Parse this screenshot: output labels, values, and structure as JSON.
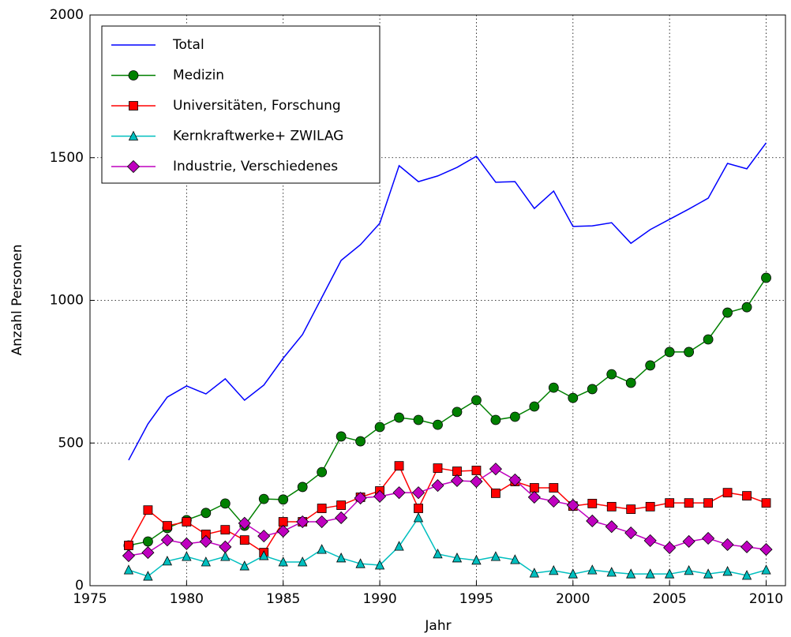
{
  "chart_data": {
    "type": "line",
    "xlabel": "Jahr",
    "ylabel": "Anzahl Personen",
    "x": [
      1977,
      1978,
      1979,
      1980,
      1981,
      1982,
      1983,
      1984,
      1985,
      1986,
      1987,
      1988,
      1989,
      1990,
      1991,
      1992,
      1993,
      1994,
      1995,
      1996,
      1997,
      1998,
      1999,
      2000,
      2001,
      2002,
      2003,
      2004,
      2005,
      2006,
      2007,
      2008,
      2009,
      2010
    ],
    "series": [
      {
        "name": "Total",
        "color": "#0000ff",
        "marker": "none",
        "values": [
          440,
          567,
          661,
          700,
          672,
          725,
          650,
          703,
          797,
          880,
          1010,
          1140,
          1195,
          1270,
          1472,
          1416,
          1436,
          1466,
          1505,
          1414,
          1416,
          1322,
          1383,
          1259,
          1261,
          1272,
          1200,
          1248,
          1284,
          1320,
          1358,
          1480,
          1461,
          1552
        ]
      },
      {
        "name": "Medizin",
        "color": "#008000",
        "marker": "circle",
        "values": [
          141,
          155,
          202,
          230,
          255,
          288,
          210,
          304,
          302,
          346,
          398,
          523,
          506,
          556,
          589,
          581,
          564,
          609,
          650,
          581,
          592,
          628,
          694,
          658,
          689,
          741,
          711,
          772,
          819,
          819,
          863,
          957,
          976,
          1079
        ]
      },
      {
        "name": "Universitäten, Forschung",
        "color": "#ff0000",
        "marker": "square",
        "values": [
          141,
          265,
          210,
          224,
          180,
          196,
          160,
          116,
          224,
          224,
          271,
          282,
          310,
          332,
          420,
          271,
          412,
          401,
          404,
          324,
          365,
          343,
          343,
          279,
          288,
          277,
          268,
          277,
          290,
          290,
          290,
          326,
          315,
          290
        ]
      },
      {
        "name": "Kernkraftwerke+ ZWILAG",
        "color": "#00bfbf",
        "marker": "triangle",
        "values": [
          55,
          33,
          86,
          102,
          83,
          102,
          69,
          105,
          83,
          83,
          127,
          97,
          77,
          72,
          138,
          238,
          111,
          97,
          89,
          102,
          91,
          44,
          53,
          41,
          55,
          47,
          41,
          41,
          41,
          53,
          41,
          50,
          36,
          55
        ]
      },
      {
        "name": "Industrie, Verschiedenes",
        "color": "#bf00bf",
        "marker": "diamond",
        "values": [
          105,
          116,
          160,
          147,
          155,
          136,
          219,
          174,
          191,
          224,
          224,
          238,
          307,
          313,
          326,
          326,
          351,
          368,
          365,
          409,
          371,
          310,
          296,
          282,
          227,
          207,
          185,
          158,
          133,
          155,
          166,
          144,
          136,
          127
        ]
      }
    ],
    "xlim": [
      1975,
      2011
    ],
    "xticks": [
      1975,
      1980,
      1985,
      1990,
      1995,
      2000,
      2005,
      2010
    ],
    "ylim": [
      0,
      2000
    ],
    "yticks": [
      0,
      500,
      1000,
      1500,
      2000
    ],
    "grid": true,
    "legend": "upper left"
  }
}
